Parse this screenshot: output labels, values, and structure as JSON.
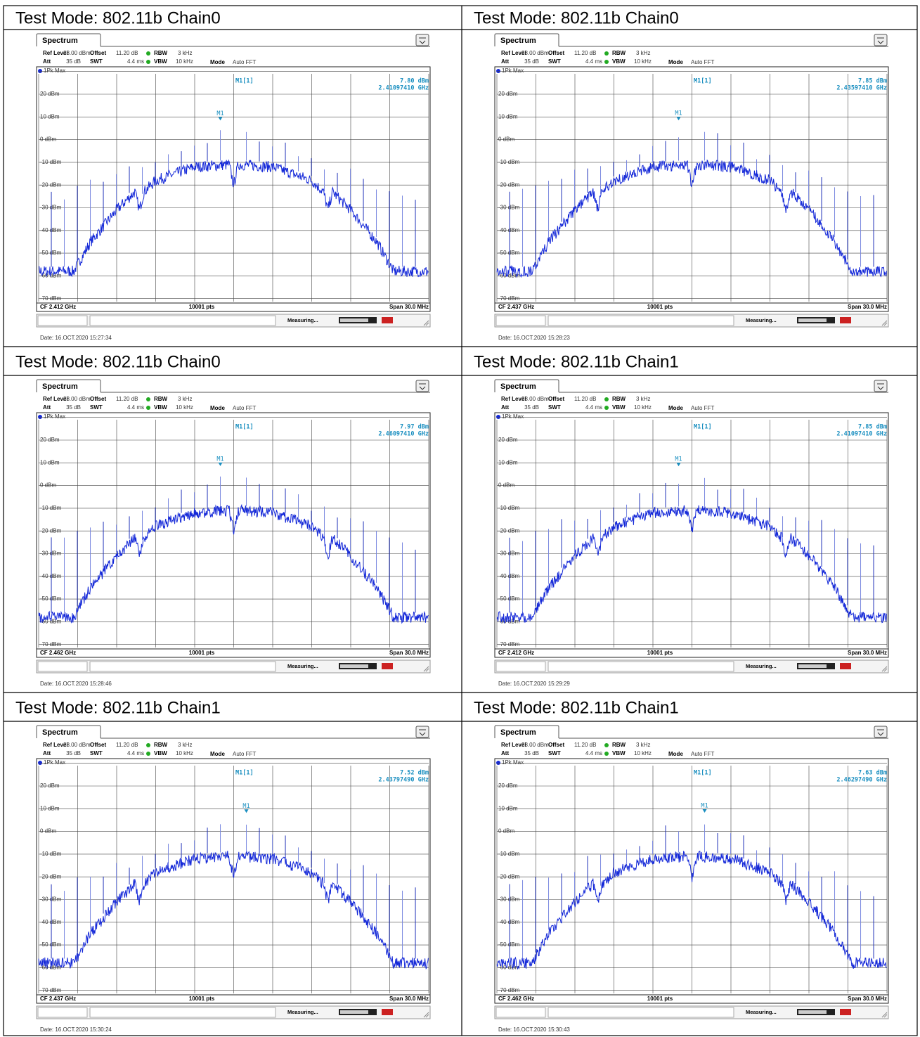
{
  "spectrum": {
    "tab": "Spectrum",
    "ref_level_label": "Ref Level",
    "ref_level": "28.00 dBm",
    "offset_label": "Offset",
    "offset": "11.20 dB",
    "rbw_label": "RBW",
    "rbw": "3 kHz",
    "att_label": "Att",
    "att": "35 dB",
    "swt_label": "SWT",
    "swt": "4.4 ms",
    "vbw_label": "VBW",
    "vbw": "10 kHz",
    "mode_label": "Mode",
    "mode": "Auto FFT",
    "trace": "1Pk Max",
    "marker": "M1",
    "marker_readout": "M1[1]",
    "yticks": [
      "20 dBm",
      "10 dBm",
      "0 dBm",
      "-10 dBm",
      "-20 dBm",
      "-30 dBm",
      "-40 dBm",
      "-50 dBm",
      "-60 dBm",
      "-70 dBm"
    ],
    "points": "10001 pts",
    "span": "Span 30.0 MHz",
    "status": "Measuring..."
  },
  "cells": [
    {
      "title": "Test Mode: 802.11b Chain0",
      "marker_level": "7.80 dBm",
      "marker_freq": "2.41097410 GHz",
      "cf": "CF 2.412 GHz",
      "date": "Date: 16.OCT.2020  15:27:34"
    },
    {
      "title": "Test Mode: 802.11b Chain0",
      "marker_level": "7.85 dBm",
      "marker_freq": "2.43597410 GHz",
      "cf": "CF 2.437 GHz",
      "date": "Date: 16.OCT.2020  15:28:23"
    },
    {
      "title": "Test Mode: 802.11b Chain0",
      "marker_level": "7.97 dBm",
      "marker_freq": "2.46097410 GHz",
      "cf": "CF 2.462 GHz",
      "date": "Date: 16.OCT.2020  15:28:46"
    },
    {
      "title": "Test Mode: 802.11b Chain1",
      "marker_level": "7.85 dBm",
      "marker_freq": "2.41097410 GHz",
      "cf": "CF 2.412 GHz",
      "date": "Date: 16.OCT.2020  15:29:29"
    },
    {
      "title": "Test Mode: 802.11b Chain1",
      "marker_level": "7.52 dBm",
      "marker_freq": "2.43797490 GHz",
      "cf": "CF 2.437 GHz",
      "date": "Date: 16.OCT.2020  15:30:24"
    },
    {
      "title": "Test Mode: 802.11b Chain1",
      "marker_level": "7.63 dBm",
      "marker_freq": "2.46297490 GHz",
      "cf": "CF 2.462 GHz",
      "date": "Date: 16.OCT.2020  15:30:43"
    }
  ]
}
